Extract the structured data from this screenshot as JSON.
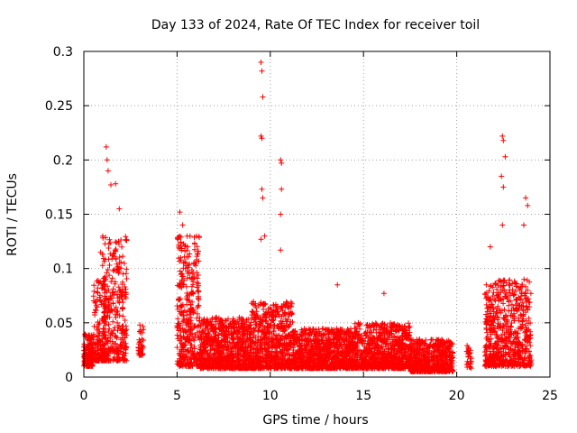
{
  "chart_data": {
    "type": "scatter",
    "title": "Day 133 of 2024, Rate Of TEC Index for receiver toil",
    "xlabel": "GPS time / hours",
    "ylabel": "ROTI / TECUs",
    "xlim": [
      0,
      25
    ],
    "ylim": [
      0,
      0.3
    ],
    "grid": true,
    "x_ticks": [
      0,
      5,
      10,
      15,
      20,
      25
    ],
    "x_tick_labels": [
      "0",
      "5",
      "10",
      "15",
      "20",
      "25"
    ],
    "y_ticks": [
      0,
      0.05,
      0.1,
      0.15,
      0.2,
      0.25,
      0.3
    ],
    "y_tick_labels": [
      "0",
      "0.05",
      "0.1",
      "0.15",
      "0.2",
      "0.25",
      "0.3"
    ],
    "marker": "plus",
    "color": "#ff0000",
    "series": [
      {
        "name": "ROTI",
        "clusters": [
          {
            "x": [
              0.0,
              0.5
            ],
            "y_range": [
              0.01,
              0.04
            ],
            "count": 150
          },
          {
            "x": [
              0.5,
              1.2
            ],
            "y_range": [
              0.015,
              0.09
            ],
            "count": 160
          },
          {
            "x": [
              1.0,
              2.3
            ],
            "y_range": [
              0.015,
              0.13
            ],
            "count": 320
          },
          {
            "x": [
              2.9,
              3.2
            ],
            "y_range": [
              0.02,
              0.05
            ],
            "count": 40
          },
          {
            "x": [
              5.0,
              6.2
            ],
            "y_range": [
              0.01,
              0.13
            ],
            "count": 380
          },
          {
            "x": [
              6.2,
              9.0
            ],
            "y_range": [
              0.008,
              0.055
            ],
            "count": 900
          },
          {
            "x": [
              9.0,
              11.2
            ],
            "y_range": [
              0.008,
              0.07
            ],
            "count": 650
          },
          {
            "x": [
              11.2,
              14.5
            ],
            "y_range": [
              0.008,
              0.045
            ],
            "count": 950
          },
          {
            "x": [
              14.5,
              17.5
            ],
            "y_range": [
              0.008,
              0.05
            ],
            "count": 850
          },
          {
            "x": [
              17.5,
              19.8
            ],
            "y_range": [
              0.005,
              0.035
            ],
            "count": 650
          },
          {
            "x": [
              20.5,
              20.8
            ],
            "y_range": [
              0.008,
              0.03
            ],
            "count": 30
          },
          {
            "x": [
              21.5,
              22.0
            ],
            "y_range": [
              0.01,
              0.085
            ],
            "count": 150
          },
          {
            "x": [
              22.0,
              24.0
            ],
            "y_range": [
              0.01,
              0.09
            ],
            "count": 500
          }
        ],
        "peaks": [
          {
            "x": 0.9,
            "y": 0.115
          },
          {
            "x": 1.2,
            "y": 0.212
          },
          {
            "x": 1.25,
            "y": 0.2
          },
          {
            "x": 1.3,
            "y": 0.19
          },
          {
            "x": 1.45,
            "y": 0.177
          },
          {
            "x": 1.7,
            "y": 0.178
          },
          {
            "x": 1.9,
            "y": 0.155
          },
          {
            "x": 5.15,
            "y": 0.152
          },
          {
            "x": 5.3,
            "y": 0.14
          },
          {
            "x": 9.5,
            "y": 0.29
          },
          {
            "x": 9.55,
            "y": 0.282
          },
          {
            "x": 9.6,
            "y": 0.258
          },
          {
            "x": 9.5,
            "y": 0.222
          },
          {
            "x": 9.55,
            "y": 0.22
          },
          {
            "x": 9.55,
            "y": 0.173
          },
          {
            "x": 9.6,
            "y": 0.165
          },
          {
            "x": 9.5,
            "y": 0.127
          },
          {
            "x": 9.7,
            "y": 0.13
          },
          {
            "x": 10.55,
            "y": 0.2
          },
          {
            "x": 10.6,
            "y": 0.197
          },
          {
            "x": 10.6,
            "y": 0.173
          },
          {
            "x": 10.55,
            "y": 0.15
          },
          {
            "x": 10.55,
            "y": 0.117
          },
          {
            "x": 13.6,
            "y": 0.085
          },
          {
            "x": 16.1,
            "y": 0.077
          },
          {
            "x": 22.45,
            "y": 0.222
          },
          {
            "x": 22.5,
            "y": 0.218
          },
          {
            "x": 22.6,
            "y": 0.203
          },
          {
            "x": 22.4,
            "y": 0.185
          },
          {
            "x": 22.5,
            "y": 0.175
          },
          {
            "x": 22.45,
            "y": 0.14
          },
          {
            "x": 23.7,
            "y": 0.165
          },
          {
            "x": 23.8,
            "y": 0.158
          },
          {
            "x": 23.6,
            "y": 0.14
          },
          {
            "x": 21.8,
            "y": 0.12
          }
        ]
      }
    ]
  }
}
